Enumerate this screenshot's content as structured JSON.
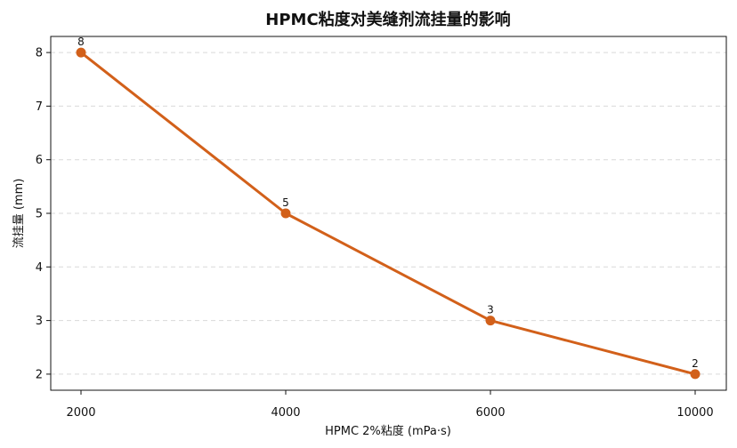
{
  "chart_data": {
    "type": "line",
    "title": "HPMC粘度对美缝剂流挂量的影响",
    "xlabel": "HPMC 2%粘度 (mPa·s)",
    "ylabel": "流挂量 (mm)",
    "categories": [
      "2000",
      "4000",
      "6000",
      "10000"
    ],
    "series": [
      {
        "values": [
          8,
          5,
          3,
          2
        ]
      }
    ],
    "data_labels": [
      "8",
      "5",
      "3",
      "2"
    ],
    "yticks": [
      2,
      3,
      4,
      5,
      6,
      7,
      8
    ],
    "ylim": [
      1.7,
      8.3
    ],
    "grid": "y-dashed",
    "line_color": "#d2601a"
  }
}
